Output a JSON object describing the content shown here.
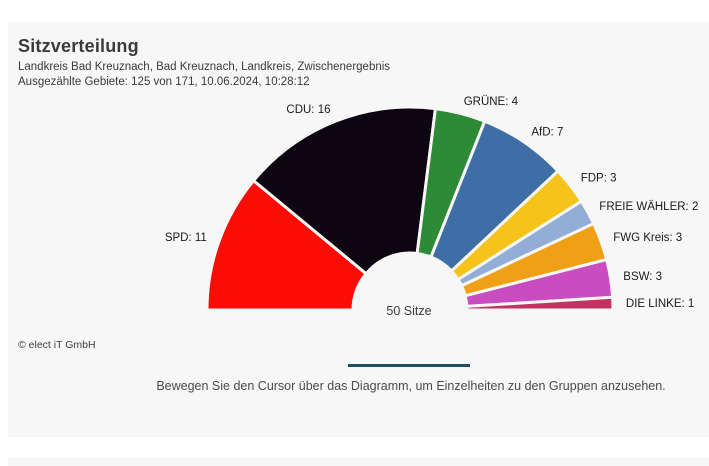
{
  "card": {
    "title": "Sitzverteilung",
    "subtitle": "Landkreis Bad Kreuznach, Bad Kreuznach, Landkreis, Zwischenergebnis",
    "status_line": "Ausgezählte Gebiete: 125 von 171, 10.06.2024, 10:28:12",
    "copyright": "© elect iT GmbH",
    "hint": "Bewegen Sie den Cursor über das Diagramm, um Einzelheiten zu den Gruppen anzusehen."
  },
  "colors": {
    "card_background": "#f7f7f7",
    "divider": "#1d4e66",
    "label_text": "#1a1a1a"
  },
  "chart_data": {
    "type": "pie",
    "variant": "half-donut",
    "title": "Sitzverteilung",
    "center_label": "50 Sitze",
    "total_seats": 50,
    "label_format": "{name}: {seats}",
    "legend_position": "outside-labels",
    "series": [
      {
        "name": "SPD",
        "seats": 11,
        "color": "#fb0c05"
      },
      {
        "name": "CDU",
        "seats": 16,
        "color": "#0d0511"
      },
      {
        "name": "GRÜNE",
        "seats": 4,
        "color": "#2d8a35"
      },
      {
        "name": "AfD",
        "seats": 7,
        "color": "#3f6ea7"
      },
      {
        "name": "FDP",
        "seats": 3,
        "color": "#f5c319"
      },
      {
        "name": "FREIE WÄHLER",
        "seats": 2,
        "color": "#93aed6"
      },
      {
        "name": "FWG Kreis",
        "seats": 3,
        "color": "#f0a014"
      },
      {
        "name": "BSW",
        "seats": 3,
        "color": "#c94cc1"
      },
      {
        "name": "DIE LINKE",
        "seats": 1,
        "color": "#c13261"
      }
    ]
  }
}
